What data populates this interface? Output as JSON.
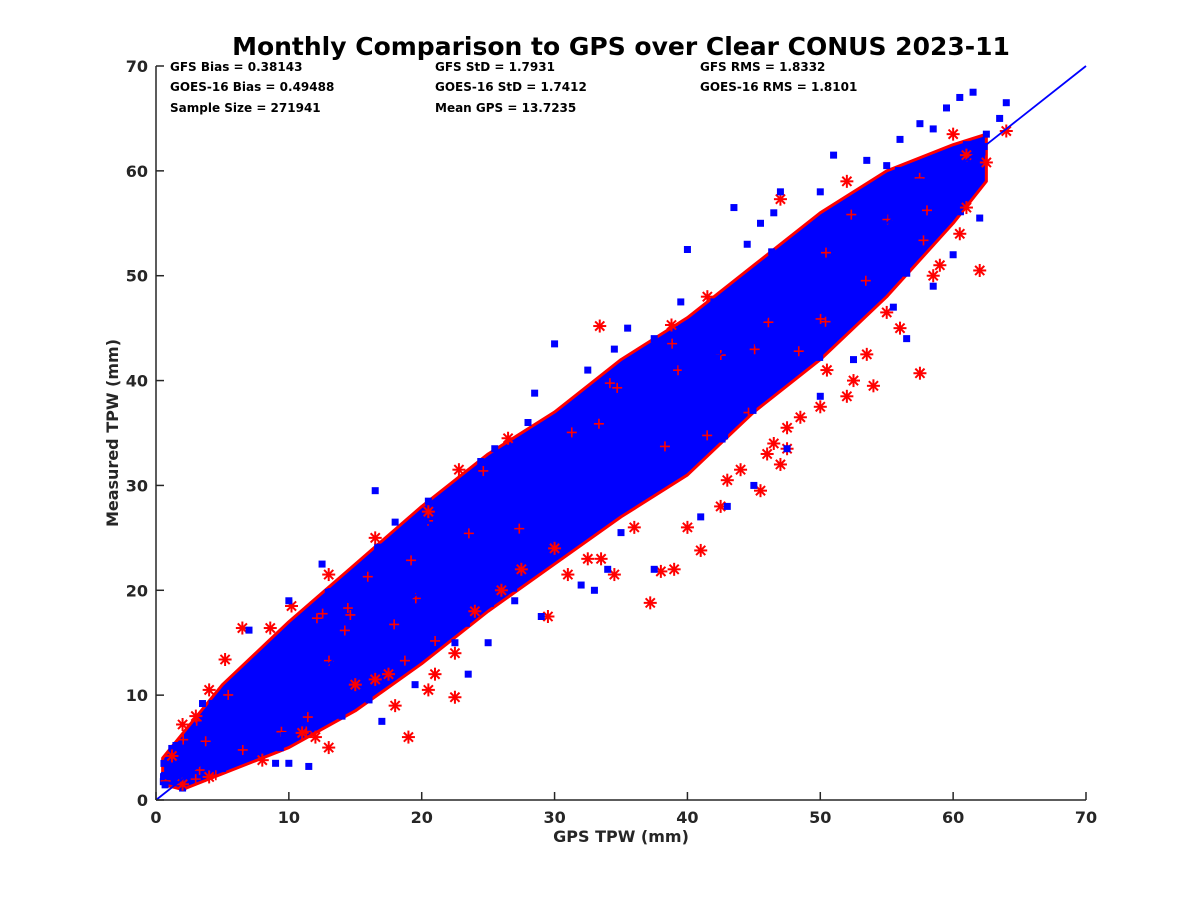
{
  "chart_data": {
    "type": "scatter",
    "title": "Monthly Comparison to GPS over Clear CONUS 2023-11",
    "xlabel": "GPS TPW (mm)",
    "ylabel": "Measured TPW (mm)",
    "xlim": [
      0,
      70
    ],
    "ylim": [
      0,
      70
    ],
    "xticks": [
      0,
      10,
      20,
      30,
      40,
      50,
      60,
      70
    ],
    "yticks": [
      0,
      10,
      20,
      30,
      40,
      50,
      60,
      70
    ],
    "grid": false,
    "reference_line": {
      "name": "1:1 line",
      "x": [
        0,
        70
      ],
      "y": [
        0,
        70
      ],
      "color": "#0000ff"
    },
    "stats": {
      "gfs_bias": "GFS Bias = 0.38143",
      "goes_bias": "GOES-16 Bias = 0.49488",
      "sample_size": "Sample Size = 271941",
      "gfs_std": "GFS StD = 1.7931",
      "goes_std": "GOES-16 StD = 1.7412",
      "mean_gps": "Mean GPS = 13.7235",
      "gfs_rms": "GFS RMS = 1.8332",
      "goes_rms": "GOES-16 RMS = 1.8101"
    },
    "series": [
      {
        "name": "GFS",
        "marker": "asterisk",
        "color": "#ff0000",
        "outliers": [
          [
            1.2,
            4.2
          ],
          [
            2.0,
            7.2
          ],
          [
            3.0,
            8.0
          ],
          [
            4.0,
            10.5
          ],
          [
            5.2,
            13.4
          ],
          [
            6.5,
            16.4
          ],
          [
            8.6,
            16.4
          ],
          [
            10.2,
            18.5
          ],
          [
            13.0,
            21.5
          ],
          [
            16.5,
            25.0
          ],
          [
            20.5,
            27.5
          ],
          [
            22.8,
            31.5
          ],
          [
            26.5,
            34.5
          ],
          [
            33.4,
            45.2
          ],
          [
            38.8,
            45.3
          ],
          [
            41.5,
            48.0
          ],
          [
            47.0,
            57.3
          ],
          [
            52.0,
            59.0
          ],
          [
            60.0,
            63.5
          ],
          [
            61.0,
            61.5
          ],
          [
            64.0,
            63.8
          ],
          [
            62.5,
            60.8
          ],
          [
            2.0,
            1.5
          ],
          [
            4.0,
            2.2
          ],
          [
            8.0,
            3.8
          ],
          [
            11.0,
            6.4
          ],
          [
            13.0,
            5.0
          ],
          [
            15.0,
            11.0
          ],
          [
            16.5,
            11.5
          ],
          [
            17.5,
            12.0
          ],
          [
            18.0,
            9.0
          ],
          [
            19.0,
            6.0
          ],
          [
            20.5,
            10.5
          ],
          [
            21.0,
            12.0
          ],
          [
            22.5,
            9.8
          ],
          [
            22.5,
            14.0
          ],
          [
            24.0,
            18.0
          ],
          [
            26.0,
            20.0
          ],
          [
            27.5,
            22.0
          ],
          [
            29.5,
            17.5
          ],
          [
            31.0,
            21.5
          ],
          [
            32.5,
            23.0
          ],
          [
            33.5,
            23.0
          ],
          [
            34.5,
            21.5
          ],
          [
            37.2,
            18.8
          ],
          [
            38.0,
            21.8
          ],
          [
            39.0,
            22.0
          ],
          [
            40.0,
            26.0
          ],
          [
            41.0,
            23.8
          ],
          [
            42.5,
            28.0
          ],
          [
            43.0,
            30.5
          ],
          [
            45.5,
            29.5
          ],
          [
            46.0,
            33.0
          ],
          [
            46.5,
            34.0
          ],
          [
            47.0,
            32.0
          ],
          [
            47.5,
            35.5
          ],
          [
            47.5,
            33.5
          ],
          [
            48.5,
            36.5
          ],
          [
            50.0,
            37.5
          ],
          [
            50.5,
            41.0
          ],
          [
            52.0,
            38.5
          ],
          [
            52.5,
            40.0
          ],
          [
            53.5,
            42.5
          ],
          [
            54.0,
            39.5
          ],
          [
            55.0,
            46.5
          ],
          [
            56.0,
            45.0
          ],
          [
            57.5,
            40.7
          ],
          [
            58.5,
            50.0
          ],
          [
            59.0,
            51.0
          ],
          [
            60.5,
            54.0
          ],
          [
            61.0,
            56.5
          ],
          [
            62.0,
            50.5
          ],
          [
            44.0,
            31.5
          ],
          [
            36.0,
            26.0
          ],
          [
            30.0,
            24.0
          ],
          [
            12.0,
            6.0
          ]
        ]
      },
      {
        "name": "GOES-16",
        "marker": "square",
        "color": "#0000ff",
        "outliers": [
          [
            1.5,
            5.2
          ],
          [
            3.5,
            9.2
          ],
          [
            7.0,
            16.2
          ],
          [
            10.0,
            19.0
          ],
          [
            12.5,
            22.5
          ],
          [
            16.5,
            29.5
          ],
          [
            18.0,
            26.5
          ],
          [
            20.5,
            28.5
          ],
          [
            25.5,
            33.5
          ],
          [
            28.0,
            36.0
          ],
          [
            28.5,
            38.8
          ],
          [
            30.0,
            43.5
          ],
          [
            32.5,
            41.0
          ],
          [
            34.5,
            43.0
          ],
          [
            35.5,
            45.0
          ],
          [
            37.5,
            44.0
          ],
          [
            40.0,
            52.5
          ],
          [
            42.0,
            47.5
          ],
          [
            44.5,
            53.0
          ],
          [
            45.5,
            55.0
          ],
          [
            47.0,
            58.0
          ],
          [
            51.0,
            61.5
          ],
          [
            53.5,
            61.0
          ],
          [
            56.0,
            63.0
          ],
          [
            58.5,
            64.0
          ],
          [
            59.5,
            66.0
          ],
          [
            60.5,
            67.0
          ],
          [
            61.5,
            67.5
          ],
          [
            63.5,
            65.0
          ],
          [
            64.0,
            66.5
          ],
          [
            62.5,
            63.5
          ],
          [
            61.0,
            62.5
          ],
          [
            57.5,
            64.5
          ],
          [
            55.0,
            60.5
          ],
          [
            50.0,
            58.0
          ],
          [
            46.5,
            56.0
          ],
          [
            43.5,
            56.5
          ],
          [
            39.5,
            47.5
          ],
          [
            5.0,
            3.0
          ],
          [
            9.0,
            3.5
          ],
          [
            10.0,
            3.5
          ],
          [
            11.5,
            3.2
          ],
          [
            17.0,
            7.5
          ],
          [
            19.5,
            11.0
          ],
          [
            22.5,
            15.0
          ],
          [
            23.5,
            12.0
          ],
          [
            25.0,
            15.0
          ],
          [
            27.0,
            19.0
          ],
          [
            29.0,
            17.5
          ],
          [
            32.0,
            20.5
          ],
          [
            33.0,
            20.0
          ],
          [
            34.0,
            22.0
          ],
          [
            37.5,
            22.0
          ],
          [
            41.0,
            27.0
          ],
          [
            45.0,
            30.0
          ],
          [
            47.5,
            33.5
          ],
          [
            50.0,
            38.5
          ],
          [
            52.5,
            42.0
          ],
          [
            56.5,
            44.0
          ],
          [
            58.5,
            49.0
          ],
          [
            62.0,
            55.5
          ],
          [
            60.0,
            52.0
          ],
          [
            55.5,
            47.0
          ],
          [
            43.0,
            28.0
          ],
          [
            35.0,
            25.5
          ],
          [
            14.0,
            8.0
          ]
        ]
      }
    ],
    "cloud": {
      "description": "dense point cloud along the 1:1 line",
      "center_line": [
        [
          1.0,
          2.0
        ],
        [
          10.0,
          11.0
        ],
        [
          20.0,
          21.0
        ],
        [
          30.0,
          30.5
        ],
        [
          40.0,
          40.0
        ],
        [
          50.0,
          49.5
        ],
        [
          60.0,
          59.0
        ]
      ],
      "upper_edge": [
        [
          0.5,
          4.0
        ],
        [
          5.0,
          11.0
        ],
        [
          10.0,
          17.0
        ],
        [
          15.0,
          22.5
        ],
        [
          20.0,
          28.0
        ],
        [
          25.0,
          33.0
        ],
        [
          30.0,
          37.0
        ],
        [
          35.0,
          42.0
        ],
        [
          40.0,
          46.0
        ],
        [
          45.0,
          51.0
        ],
        [
          50.0,
          56.0
        ],
        [
          55.0,
          60.0
        ],
        [
          60.0,
          62.5
        ],
        [
          62.5,
          63.5
        ]
      ],
      "lower_edge": [
        [
          62.5,
          59.0
        ],
        [
          60.0,
          55.0
        ],
        [
          55.0,
          48.0
        ],
        [
          50.0,
          42.0
        ],
        [
          45.0,
          37.0
        ],
        [
          40.0,
          31.0
        ],
        [
          35.0,
          27.0
        ],
        [
          30.0,
          22.5
        ],
        [
          25.0,
          18.0
        ],
        [
          20.0,
          13.0
        ],
        [
          15.0,
          8.5
        ],
        [
          10.0,
          5.0
        ],
        [
          5.0,
          2.5
        ],
        [
          2.0,
          1.0
        ],
        [
          0.5,
          1.5
        ]
      ]
    }
  }
}
